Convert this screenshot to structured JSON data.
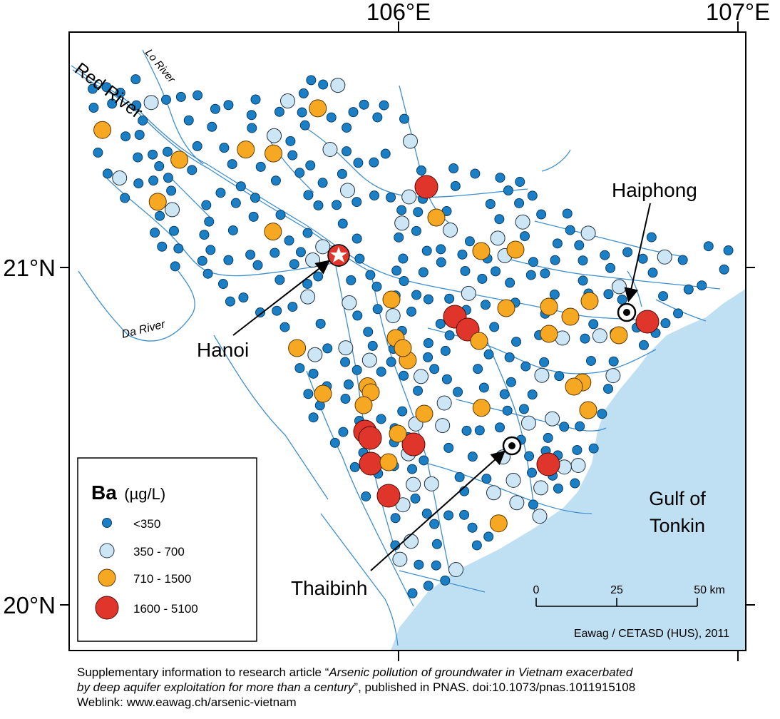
{
  "axes": {
    "lon_labels": [
      "106°E",
      "107°E"
    ],
    "lat_labels": [
      "21°N",
      "20°N"
    ]
  },
  "rivers": {
    "red": "Red River",
    "lo": "Lo River",
    "da": "Da River"
  },
  "cities": {
    "hanoi": "Hanoi",
    "haiphong": "Haiphong",
    "thaibinh": "Thaibinh"
  },
  "sea_label": [
    "Gulf of",
    "Tonkin"
  ],
  "legend": {
    "element": "Ba",
    "unit": "(µg/L)",
    "classes": [
      {
        "label": "<350",
        "color": "#1a7fc4",
        "size": "small"
      },
      {
        "label": "350 - 700",
        "color": "#cde6f5",
        "size": "medium"
      },
      {
        "label": "710 - 1500",
        "color": "#f7a823",
        "size": "large"
      },
      {
        "label": "1600 - 5100",
        "color": "#e0352b",
        "size": "xlarge"
      }
    ]
  },
  "scale_bar": {
    "ticks": [
      "0",
      "25",
      "50 km"
    ]
  },
  "credit": "Eawag / CETASD (HUS), 2011",
  "caption": {
    "line1_prefix": "Supplementary information to research article “",
    "line1_title": "Arsenic pollution of groundwater in Vietnam exacerbated",
    "line2_title": "by deep aquifer exploitation for more than a century",
    "line2_suffix": "”, published in PNAS. doi:10.1073/pnas.1011915108",
    "line3": "Weblink: www.eawag.ch/arsenic-vietnam"
  },
  "colors": {
    "sea": "#bfe0f3",
    "river": "#3e8fd0",
    "frame": "#000000"
  }
}
